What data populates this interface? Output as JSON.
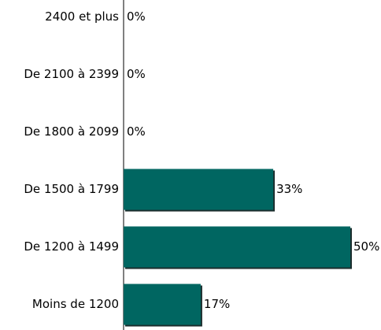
{
  "chart_data": {
    "type": "barh",
    "categories": [
      "2400 et plus",
      "De 2100 à 2399",
      "De 1800 à 2099",
      "De 1500 à 1799",
      "De 1200 à 1499",
      "Moins de 1200"
    ],
    "values": [
      0,
      0,
      0,
      33,
      50,
      17
    ],
    "value_labels": [
      "0%",
      "0%",
      "0%",
      "33%",
      "50%",
      "17%"
    ],
    "color": "#006661"
  }
}
